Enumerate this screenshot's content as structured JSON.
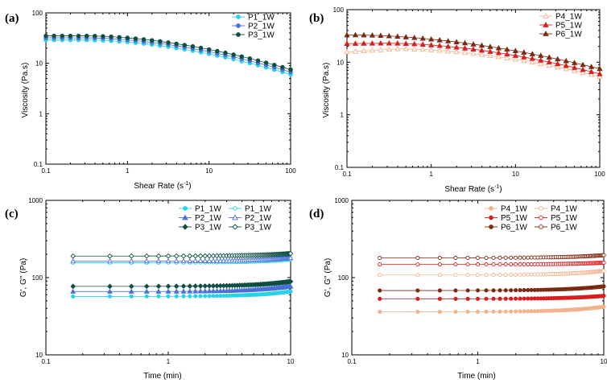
{
  "chart_data": [
    {
      "panel": "(a)",
      "type": "scatter",
      "xlabel": "Shear Rate (s",
      "xlabel_sup": "-1",
      "xlabel_tail": ")",
      "ylabel": "Viscosity (Pa.s)",
      "xscale": "log",
      "yscale": "log",
      "xlim": [
        0.1,
        100
      ],
      "ylim": [
        0.1,
        100
      ],
      "xticks": [
        "0.1",
        "1",
        "10",
        "100"
      ],
      "yticks": [
        "0.1",
        "1",
        "10",
        "100"
      ],
      "legend_position": "top-right",
      "series": [
        {
          "name": "P1_1W",
          "color": "#27d3e6",
          "marker": "circle",
          "filled": true,
          "curve": {
            "x_start": 0.1,
            "x_end": 100,
            "plateau": 29,
            "peak_x": 0.3,
            "rise": 1.0,
            "end": 6.0
          }
        },
        {
          "name": "P2_1W",
          "color": "#4a6fd8",
          "marker": "circle",
          "filled": true,
          "curve": {
            "x_start": 0.1,
            "x_end": 100,
            "plateau": 32,
            "peak_x": 0.3,
            "rise": 1.0,
            "end": 6.7
          }
        },
        {
          "name": "P3_1W",
          "color": "#0e4f43",
          "marker": "circle",
          "filled": true,
          "curve": {
            "x_start": 0.1,
            "x_end": 100,
            "plateau": 35,
            "peak_x": 0.3,
            "rise": 1.0,
            "end": 7.5
          }
        }
      ]
    },
    {
      "panel": "(b)",
      "type": "scatter",
      "xlabel": "Shear Rate (s",
      "xlabel_sup": "-1",
      "xlabel_tail": ")",
      "ylabel": "Viscosity (Pa.s)",
      "xscale": "log",
      "yscale": "log",
      "xlim": [
        0.1,
        100
      ],
      "ylim": [
        0.1,
        100
      ],
      "xticks": [
        "0.1",
        "1",
        "10",
        "100"
      ],
      "yticks": [
        "0.1",
        "1",
        "10",
        "100"
      ],
      "legend_position": "top-right",
      "series": [
        {
          "name": "P4_1W",
          "color": "#f2b38c",
          "marker": "triangle",
          "filled": false,
          "curve": {
            "x_start": 0.1,
            "x_end": 100,
            "plateau": 18,
            "peak_x": 0.4,
            "rise": 1.15,
            "end": 5.3
          }
        },
        {
          "name": "P5_1W",
          "color": "#d81e1e",
          "marker": "triangle",
          "filled": true,
          "curve": {
            "x_start": 0.1,
            "x_end": 100,
            "plateau": 23,
            "peak_x": 0.3,
            "rise": 1.02,
            "end": 6.0
          }
        },
        {
          "name": "P6_1W",
          "color": "#7a2b12",
          "marker": "triangle",
          "filled": true,
          "curve": {
            "x_start": 0.1,
            "x_end": 100,
            "plateau": 33,
            "peak_x": 0.12,
            "rise": 1.0,
            "end": 7.5
          }
        }
      ]
    },
    {
      "panel": "(c)",
      "type": "scatter",
      "xlabel": "Time (min)",
      "ylabel": "G', G'' (Pa)",
      "xscale": "log",
      "yscale": "log",
      "xlim": [
        0.1,
        10
      ],
      "ylim": [
        10,
        1000
      ],
      "xticks": [
        "0.1",
        "1",
        "10"
      ],
      "yticks": [
        "10",
        "100",
        "1000"
      ],
      "legend_position": "top-right",
      "series": [
        {
          "name": "P1_1W",
          "modulus": "G'",
          "color": "#27d3e6",
          "marker": "circle",
          "filled": true,
          "start": 57,
          "end": 66
        },
        {
          "name": "P1_1W",
          "modulus": "G''",
          "color": "#27d3e6",
          "marker": "circle",
          "filled": false,
          "start": 156,
          "end": 172
        },
        {
          "name": "P2_1W",
          "modulus": "G'",
          "color": "#4a6fd8",
          "marker": "triangle",
          "filled": true,
          "start": 66,
          "end": 77
        },
        {
          "name": "P2_1W",
          "modulus": "G''",
          "color": "#4a6fd8",
          "marker": "triangle",
          "filled": false,
          "start": 163,
          "end": 180
        },
        {
          "name": "P3_1W",
          "modulus": "G'",
          "color": "#0e4f43",
          "marker": "diamond",
          "filled": true,
          "start": 77,
          "end": 89
        },
        {
          "name": "P3_1W",
          "modulus": "G''",
          "color": "#0e4f43",
          "marker": "diamond",
          "filled": false,
          "start": 190,
          "end": 205
        }
      ]
    },
    {
      "panel": "(d)",
      "type": "scatter",
      "xlabel": "Time (min)",
      "ylabel": "G', G'' (Pa)",
      "xscale": "log",
      "yscale": "log",
      "xlim": [
        0.1,
        10
      ],
      "ylim": [
        10,
        1000
      ],
      "xticks": [
        "0.1",
        "1",
        "10"
      ],
      "yticks": [
        "10",
        "100",
        "1000"
      ],
      "legend_position": "top-right",
      "series": [
        {
          "name": "P4_1W",
          "modulus": "G'",
          "color": "#f2b38c",
          "marker": "circle",
          "filled": true,
          "start": 36,
          "end": 42
        },
        {
          "name": "P4_1W",
          "modulus": "G''",
          "color": "#f2b38c",
          "marker": "circle",
          "filled": false,
          "start": 108,
          "end": 122
        },
        {
          "name": "P5_1W",
          "modulus": "G'",
          "color": "#d81e1e",
          "marker": "circle",
          "filled": true,
          "start": 53,
          "end": 58
        },
        {
          "name": "P5_1W",
          "modulus": "G''",
          "color": "#d81e1e",
          "marker": "circle",
          "filled": false,
          "start": 148,
          "end": 156
        },
        {
          "name": "P6_1W",
          "modulus": "G'",
          "color": "#7a2b12",
          "marker": "circle",
          "filled": true,
          "start": 68,
          "end": 77
        },
        {
          "name": "P6_1W",
          "modulus": "G''",
          "color": "#7a2b12",
          "marker": "circle",
          "filled": false,
          "start": 180,
          "end": 195
        }
      ]
    }
  ]
}
